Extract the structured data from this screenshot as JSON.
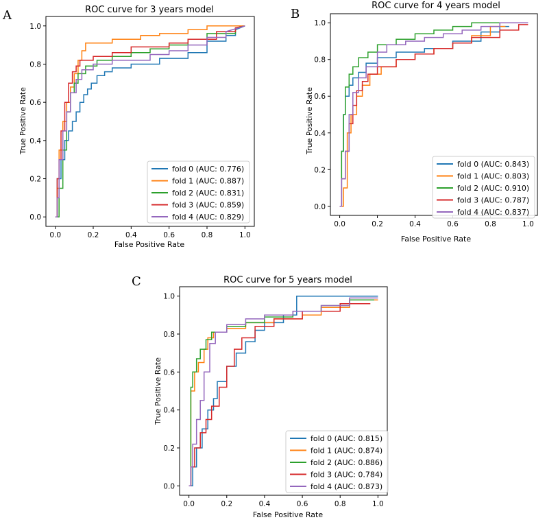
{
  "colors": {
    "fold0": "#1f77b4",
    "fold1": "#ff7f0e",
    "fold2": "#2ca02c",
    "fold3": "#d62728",
    "fold4": "#9467bd"
  },
  "chart_data": [
    {
      "panel": "A",
      "type": "line",
      "title": "ROC curve for 3 years model",
      "xlabel": "False Positive Rate",
      "ylabel": "True Positive Rate",
      "xlim": [
        0,
        1
      ],
      "ylim": [
        0,
        1
      ],
      "xticks": [
        "0.0",
        "0.2",
        "0.4",
        "0.6",
        "0.8",
        "1.0"
      ],
      "yticks": [
        "0.0",
        "0.2",
        "0.4",
        "0.6",
        "0.8",
        "1.0"
      ],
      "legend_position": "lower-right",
      "series": [
        {
          "name": "fold 0 (AUC: 0.776)",
          "color_key": "fold0",
          "x": [
            0,
            0.01,
            0.01,
            0.03,
            0.03,
            0.05,
            0.05,
            0.07,
            0.07,
            0.09,
            0.09,
            0.11,
            0.11,
            0.13,
            0.13,
            0.15,
            0.15,
            0.17,
            0.17,
            0.19,
            0.19,
            0.22,
            0.22,
            0.26,
            0.26,
            0.3,
            0.3,
            0.4,
            0.4,
            0.55,
            0.55,
            0.7,
            0.7,
            0.8,
            0.8,
            0.9,
            0.9,
            0.95,
            0.95,
            1.0
          ],
          "y": [
            0,
            0,
            0.2,
            0.2,
            0.3,
            0.3,
            0.4,
            0.4,
            0.45,
            0.45,
            0.5,
            0.5,
            0.55,
            0.55,
            0.6,
            0.6,
            0.64,
            0.64,
            0.67,
            0.67,
            0.7,
            0.7,
            0.74,
            0.74,
            0.76,
            0.76,
            0.78,
            0.78,
            0.8,
            0.8,
            0.83,
            0.83,
            0.86,
            0.86,
            0.92,
            0.92,
            0.95,
            0.95,
            0.98,
            1.0
          ]
        },
        {
          "name": "fold 1 (AUC: 0.887)",
          "color_key": "fold1",
          "x": [
            0,
            0.01,
            0.01,
            0.02,
            0.02,
            0.04,
            0.04,
            0.06,
            0.06,
            0.08,
            0.08,
            0.1,
            0.1,
            0.12,
            0.12,
            0.14,
            0.14,
            0.16,
            0.16,
            0.3,
            0.3,
            0.45,
            0.45,
            0.55,
            0.55,
            0.7,
            0.7,
            0.8,
            0.8,
            1.0
          ],
          "y": [
            0,
            0,
            0.15,
            0.15,
            0.35,
            0.35,
            0.5,
            0.5,
            0.6,
            0.6,
            0.68,
            0.68,
            0.75,
            0.75,
            0.82,
            0.82,
            0.87,
            0.87,
            0.91,
            0.91,
            0.93,
            0.93,
            0.95,
            0.95,
            0.96,
            0.96,
            0.98,
            0.98,
            1.0,
            1.0
          ]
        },
        {
          "name": "fold 2 (AUC: 0.831)",
          "color_key": "fold2",
          "x": [
            0,
            0.02,
            0.02,
            0.04,
            0.04,
            0.06,
            0.06,
            0.08,
            0.08,
            0.1,
            0.1,
            0.12,
            0.12,
            0.16,
            0.16,
            0.22,
            0.22,
            0.3,
            0.3,
            0.4,
            0.4,
            0.5,
            0.5,
            0.6,
            0.6,
            0.7,
            0.7,
            0.8,
            0.8,
            0.95,
            0.95,
            1.0
          ],
          "y": [
            0,
            0,
            0.15,
            0.15,
            0.35,
            0.35,
            0.55,
            0.55,
            0.65,
            0.65,
            0.7,
            0.7,
            0.75,
            0.75,
            0.79,
            0.79,
            0.82,
            0.82,
            0.84,
            0.84,
            0.86,
            0.86,
            0.88,
            0.88,
            0.9,
            0.9,
            0.93,
            0.93,
            0.96,
            0.96,
            0.99,
            1.0
          ]
        },
        {
          "name": "fold 3 (AUC: 0.859)",
          "color_key": "fold3",
          "x": [
            0,
            0.01,
            0.01,
            0.02,
            0.02,
            0.03,
            0.03,
            0.05,
            0.05,
            0.07,
            0.07,
            0.09,
            0.09,
            0.11,
            0.11,
            0.13,
            0.13,
            0.2,
            0.2,
            0.3,
            0.3,
            0.4,
            0.4,
            0.6,
            0.6,
            0.7,
            0.7,
            0.85,
            0.85,
            0.95,
            0.95,
            1.0
          ],
          "y": [
            0,
            0,
            0.2,
            0.2,
            0.3,
            0.3,
            0.45,
            0.45,
            0.6,
            0.6,
            0.7,
            0.7,
            0.76,
            0.76,
            0.79,
            0.79,
            0.82,
            0.82,
            0.84,
            0.84,
            0.86,
            0.86,
            0.89,
            0.89,
            0.91,
            0.91,
            0.93,
            0.93,
            0.97,
            0.97,
            0.99,
            1.0
          ]
        },
        {
          "name": "fold 4 (AUC: 0.829)",
          "color_key": "fold4",
          "x": [
            0,
            0.01,
            0.01,
            0.02,
            0.02,
            0.04,
            0.04,
            0.06,
            0.06,
            0.08,
            0.08,
            0.11,
            0.11,
            0.14,
            0.14,
            0.2,
            0.2,
            0.3,
            0.3,
            0.5,
            0.5,
            0.6,
            0.6,
            0.7,
            0.7,
            0.8,
            0.8,
            0.9,
            0.9,
            1.0
          ],
          "y": [
            0,
            0,
            0.1,
            0.1,
            0.3,
            0.3,
            0.45,
            0.45,
            0.55,
            0.55,
            0.65,
            0.65,
            0.72,
            0.72,
            0.77,
            0.77,
            0.8,
            0.8,
            0.82,
            0.82,
            0.85,
            0.85,
            0.87,
            0.87,
            0.9,
            0.9,
            0.94,
            0.94,
            0.97,
            1.0
          ]
        }
      ]
    },
    {
      "panel": "B",
      "type": "line",
      "title": "ROC curve for 4 years model",
      "xlabel": "False Positive Rate",
      "ylabel": "True Positive Rate",
      "xlim": [
        0,
        1
      ],
      "ylim": [
        0,
        1
      ],
      "xticks": [
        "0.0",
        "0.2",
        "0.4",
        "0.6",
        "0.8",
        "1.0"
      ],
      "yticks": [
        "0.0",
        "0.2",
        "0.4",
        "0.6",
        "0.8",
        "1.0"
      ],
      "legend_position": "lower-right",
      "series": [
        {
          "name": "fold 0 (AUC: 0.843)",
          "color_key": "fold0",
          "x": [
            0,
            0.01,
            0.01,
            0.02,
            0.02,
            0.03,
            0.03,
            0.05,
            0.05,
            0.07,
            0.07,
            0.1,
            0.1,
            0.14,
            0.14,
            0.2,
            0.2,
            0.3,
            0.3,
            0.45,
            0.45,
            0.6,
            0.6,
            0.75,
            0.75,
            0.85,
            0.85,
            0.9
          ],
          "y": [
            0,
            0,
            0.3,
            0.3,
            0.5,
            0.5,
            0.6,
            0.6,
            0.66,
            0.66,
            0.7,
            0.7,
            0.73,
            0.73,
            0.78,
            0.78,
            0.81,
            0.81,
            0.84,
            0.84,
            0.86,
            0.86,
            0.9,
            0.9,
            0.95,
            0.95,
            0.98,
            0.98
          ]
        },
        {
          "name": "fold 1 (AUC: 0.803)",
          "color_key": "fold1",
          "x": [
            0,
            0.02,
            0.02,
            0.04,
            0.04,
            0.06,
            0.06,
            0.09,
            0.09,
            0.12,
            0.12,
            0.16,
            0.16,
            0.22,
            0.22,
            0.3,
            0.3,
            0.4,
            0.4,
            0.5,
            0.5,
            0.6,
            0.6,
            0.7,
            0.7,
            0.8,
            0.8,
            0.88
          ],
          "y": [
            0,
            0,
            0.1,
            0.1,
            0.4,
            0.4,
            0.5,
            0.5,
            0.6,
            0.6,
            0.66,
            0.66,
            0.72,
            0.72,
            0.76,
            0.76,
            0.8,
            0.8,
            0.83,
            0.83,
            0.86,
            0.86,
            0.89,
            0.89,
            0.93,
            0.93,
            0.98,
            0.98
          ]
        },
        {
          "name": "fold 2 (AUC: 0.910)",
          "color_key": "fold2",
          "x": [
            0,
            0.01,
            0.01,
            0.02,
            0.02,
            0.03,
            0.03,
            0.05,
            0.05,
            0.07,
            0.07,
            0.1,
            0.1,
            0.15,
            0.15,
            0.2,
            0.2,
            0.3,
            0.3,
            0.4,
            0.4,
            0.5,
            0.5,
            0.6,
            0.6,
            0.7,
            0.7,
            0.8,
            0.8,
            0.9
          ],
          "y": [
            0,
            0,
            0.3,
            0.3,
            0.5,
            0.5,
            0.65,
            0.65,
            0.72,
            0.72,
            0.76,
            0.76,
            0.81,
            0.81,
            0.84,
            0.84,
            0.88,
            0.88,
            0.91,
            0.91,
            0.94,
            0.94,
            0.96,
            0.96,
            0.98,
            0.98,
            1.0,
            1.0,
            1.0,
            1.0
          ]
        },
        {
          "name": "fold 3 (AUC: 0.787)",
          "color_key": "fold3",
          "x": [
            0,
            0.01,
            0.01,
            0.03,
            0.03,
            0.05,
            0.05,
            0.07,
            0.07,
            0.09,
            0.09,
            0.12,
            0.12,
            0.15,
            0.15,
            0.2,
            0.2,
            0.3,
            0.3,
            0.4,
            0.4,
            0.5,
            0.5,
            0.6,
            0.6,
            0.7,
            0.7,
            0.85,
            0.85,
            0.95,
            0.95,
            1.0
          ],
          "y": [
            0,
            0,
            0.15,
            0.15,
            0.3,
            0.3,
            0.45,
            0.45,
            0.55,
            0.55,
            0.63,
            0.63,
            0.68,
            0.68,
            0.72,
            0.72,
            0.76,
            0.76,
            0.8,
            0.8,
            0.83,
            0.83,
            0.86,
            0.86,
            0.89,
            0.89,
            0.92,
            0.92,
            0.96,
            0.96,
            0.99,
            0.99
          ]
        },
        {
          "name": "fold 4 (AUC: 0.837)",
          "color_key": "fold4",
          "x": [
            0,
            0.01,
            0.01,
            0.03,
            0.03,
            0.05,
            0.05,
            0.07,
            0.07,
            0.1,
            0.1,
            0.14,
            0.14,
            0.2,
            0.2,
            0.25,
            0.25,
            0.35,
            0.35,
            0.45,
            0.45,
            0.55,
            0.55,
            0.65,
            0.65,
            0.75,
            0.75,
            0.85,
            0.85,
            1.0
          ],
          "y": [
            0,
            0,
            0.15,
            0.15,
            0.3,
            0.3,
            0.5,
            0.5,
            0.62,
            0.62,
            0.7,
            0.7,
            0.76,
            0.76,
            0.84,
            0.84,
            0.88,
            0.88,
            0.9,
            0.9,
            0.92,
            0.92,
            0.94,
            0.94,
            0.96,
            0.96,
            0.98,
            0.98,
            1.0,
            1.0
          ]
        }
      ]
    },
    {
      "panel": "C",
      "type": "line",
      "title": "ROC curve for 5 years model",
      "xlabel": "False Positive Rate",
      "ylabel": "True Positive Rate",
      "xlim": [
        0,
        1
      ],
      "ylim": [
        0,
        1
      ],
      "xticks": [
        "0.0",
        "0.2",
        "0.4",
        "0.6",
        "0.8",
        "1.0"
      ],
      "yticks": [
        "0.0",
        "0.2",
        "0.4",
        "0.6",
        "0.8",
        "1.0"
      ],
      "legend_position": "lower-right",
      "series": [
        {
          "name": "fold 0 (AUC: 0.815)",
          "color_key": "fold0",
          "x": [
            0,
            0.02,
            0.02,
            0.04,
            0.04,
            0.07,
            0.07,
            0.1,
            0.1,
            0.13,
            0.13,
            0.15,
            0.15,
            0.2,
            0.2,
            0.25,
            0.25,
            0.3,
            0.3,
            0.35,
            0.35,
            0.4,
            0.4,
            0.5,
            0.5,
            0.57,
            0.57,
            0.8,
            0.8,
            1.0
          ],
          "y": [
            0,
            0,
            0.1,
            0.1,
            0.2,
            0.2,
            0.3,
            0.3,
            0.4,
            0.4,
            0.46,
            0.46,
            0.55,
            0.55,
            0.63,
            0.63,
            0.7,
            0.7,
            0.76,
            0.76,
            0.82,
            0.82,
            0.86,
            0.86,
            0.9,
            0.9,
            1.0,
            1.0,
            1.0,
            1.0
          ]
        },
        {
          "name": "fold 1 (AUC: 0.874)",
          "color_key": "fold1",
          "x": [
            0,
            0.01,
            0.01,
            0.03,
            0.03,
            0.05,
            0.05,
            0.08,
            0.08,
            0.1,
            0.1,
            0.13,
            0.13,
            0.2,
            0.2,
            0.3,
            0.3,
            0.45,
            0.45,
            0.6,
            0.6,
            0.7,
            0.7,
            0.85,
            0.85,
            1.0
          ],
          "y": [
            0,
            0,
            0.5,
            0.5,
            0.6,
            0.6,
            0.65,
            0.65,
            0.72,
            0.72,
            0.78,
            0.78,
            0.81,
            0.81,
            0.83,
            0.83,
            0.86,
            0.86,
            0.88,
            0.88,
            0.9,
            0.9,
            0.94,
            0.94,
            0.98,
            0.98
          ]
        },
        {
          "name": "fold 2 (AUC: 0.886)",
          "color_key": "fold2",
          "x": [
            0,
            0.01,
            0.01,
            0.02,
            0.02,
            0.04,
            0.04,
            0.06,
            0.06,
            0.09,
            0.09,
            0.12,
            0.12,
            0.2,
            0.2,
            0.3,
            0.3,
            0.4,
            0.4,
            0.55,
            0.55,
            0.7,
            0.7,
            0.85,
            0.85,
            0.98
          ],
          "y": [
            0,
            0,
            0.52,
            0.52,
            0.6,
            0.6,
            0.67,
            0.67,
            0.72,
            0.72,
            0.77,
            0.77,
            0.81,
            0.81,
            0.84,
            0.84,
            0.86,
            0.86,
            0.89,
            0.89,
            0.92,
            0.92,
            0.95,
            0.95,
            0.98,
            0.98
          ]
        },
        {
          "name": "fold 3 (AUC: 0.784)",
          "color_key": "fold3",
          "x": [
            0,
            0.01,
            0.01,
            0.03,
            0.03,
            0.06,
            0.06,
            0.09,
            0.09,
            0.12,
            0.12,
            0.16,
            0.16,
            0.2,
            0.2,
            0.24,
            0.24,
            0.28,
            0.28,
            0.35,
            0.35,
            0.45,
            0.45,
            0.6,
            0.6,
            0.8,
            0.8,
            0.96
          ],
          "y": [
            0,
            0,
            0.1,
            0.1,
            0.2,
            0.2,
            0.28,
            0.28,
            0.35,
            0.35,
            0.42,
            0.42,
            0.52,
            0.52,
            0.63,
            0.63,
            0.72,
            0.72,
            0.78,
            0.78,
            0.84,
            0.84,
            0.88,
            0.88,
            0.92,
            0.92,
            0.96,
            0.96
          ]
        },
        {
          "name": "fold 4 (AUC: 0.873)",
          "color_key": "fold4",
          "x": [
            0,
            0.01,
            0.01,
            0.02,
            0.02,
            0.04,
            0.04,
            0.06,
            0.06,
            0.08,
            0.08,
            0.11,
            0.11,
            0.14,
            0.14,
            0.2,
            0.2,
            0.3,
            0.3,
            0.4,
            0.4,
            0.55,
            0.55,
            0.7,
            0.7,
            0.85,
            0.85,
            1.0
          ],
          "y": [
            0,
            0,
            0.1,
            0.1,
            0.22,
            0.22,
            0.35,
            0.35,
            0.45,
            0.45,
            0.6,
            0.6,
            0.75,
            0.75,
            0.81,
            0.81,
            0.85,
            0.85,
            0.88,
            0.88,
            0.9,
            0.9,
            0.92,
            0.92,
            0.95,
            0.95,
            0.99,
            0.99
          ]
        }
      ]
    }
  ]
}
